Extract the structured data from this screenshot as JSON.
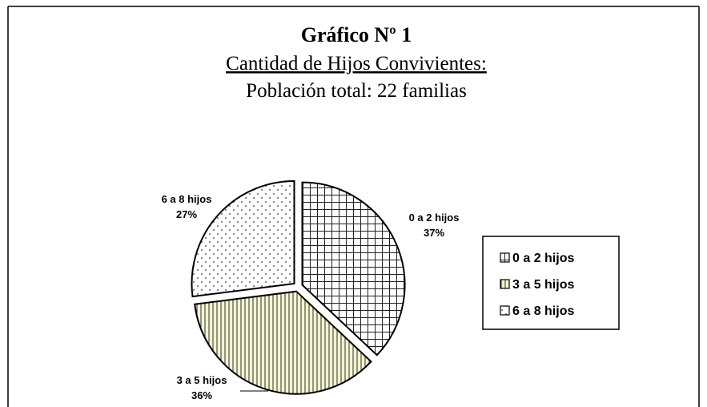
{
  "chart_data": {
    "type": "pie",
    "title": "Gráfico Nº 1",
    "subtitle": "Cantidad de Hijos Convivientes:",
    "subtitle2": "Población total: 22 familias",
    "categories": [
      "0 a 2 hijos",
      "3 a 5 hijos",
      "6 a 8 hijos"
    ],
    "values": [
      37,
      36,
      27
    ],
    "value_labels": [
      "37%",
      "36%",
      "27%"
    ],
    "legend": "right"
  }
}
